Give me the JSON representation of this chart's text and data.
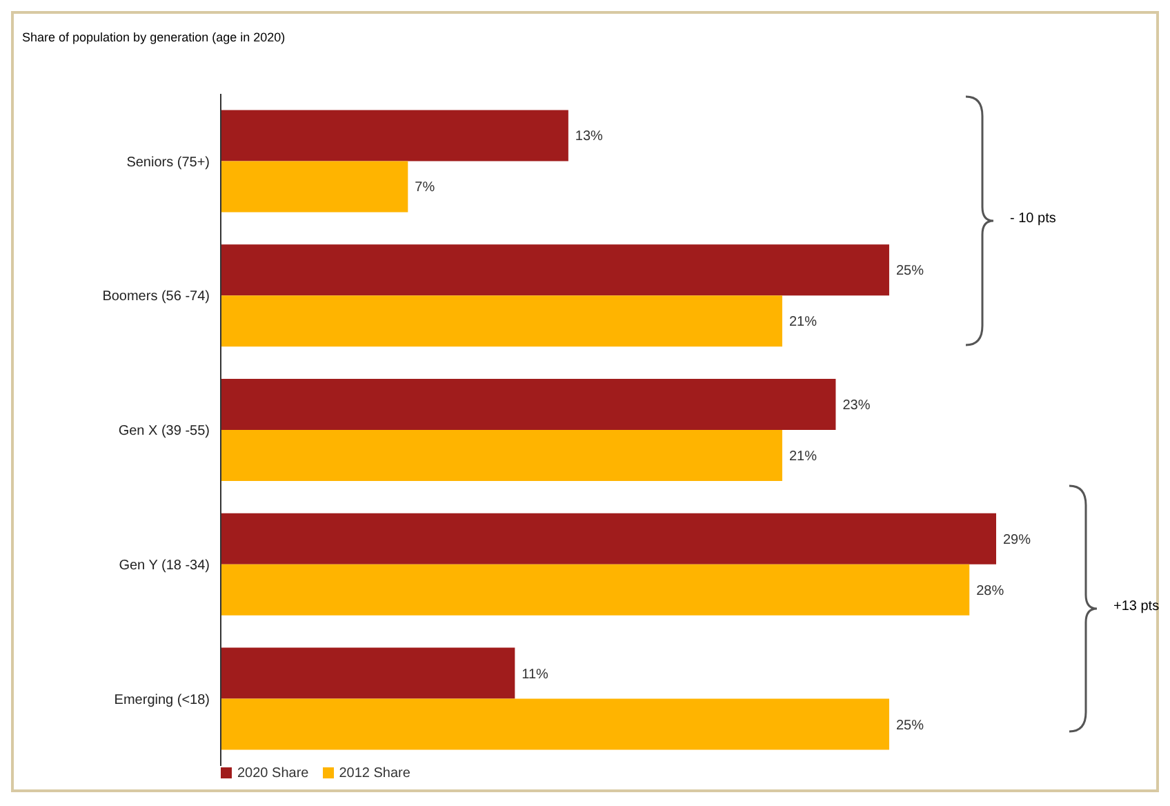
{
  "chart_data": {
    "type": "bar",
    "orientation": "horizontal",
    "title": "Share of population by generation (age in 2020)",
    "categories": [
      "Seniors (75+)",
      "Boomers (56 -74)",
      "Gen X (39 -55)",
      "Gen Y (18 -34)",
      "Emerging (<18)"
    ],
    "series": [
      {
        "name": "2020 Share",
        "color": "#a01c1c",
        "values": [
          13,
          25,
          23,
          29,
          11
        ],
        "value_labels": [
          "13%",
          "25%",
          "23%",
          "29%",
          "11%"
        ]
      },
      {
        "name": "2012 Share",
        "color": "#ffb400",
        "values": [
          7,
          21,
          21,
          28,
          25
        ],
        "value_labels": [
          "7%",
          "21%",
          "21%",
          "28%",
          "25%"
        ]
      }
    ],
    "tick_labels": "y",
    "grid": false,
    "legend": "bottom left",
    "annotations": [
      "- 10 pts",
      "+13 pts"
    ]
  }
}
